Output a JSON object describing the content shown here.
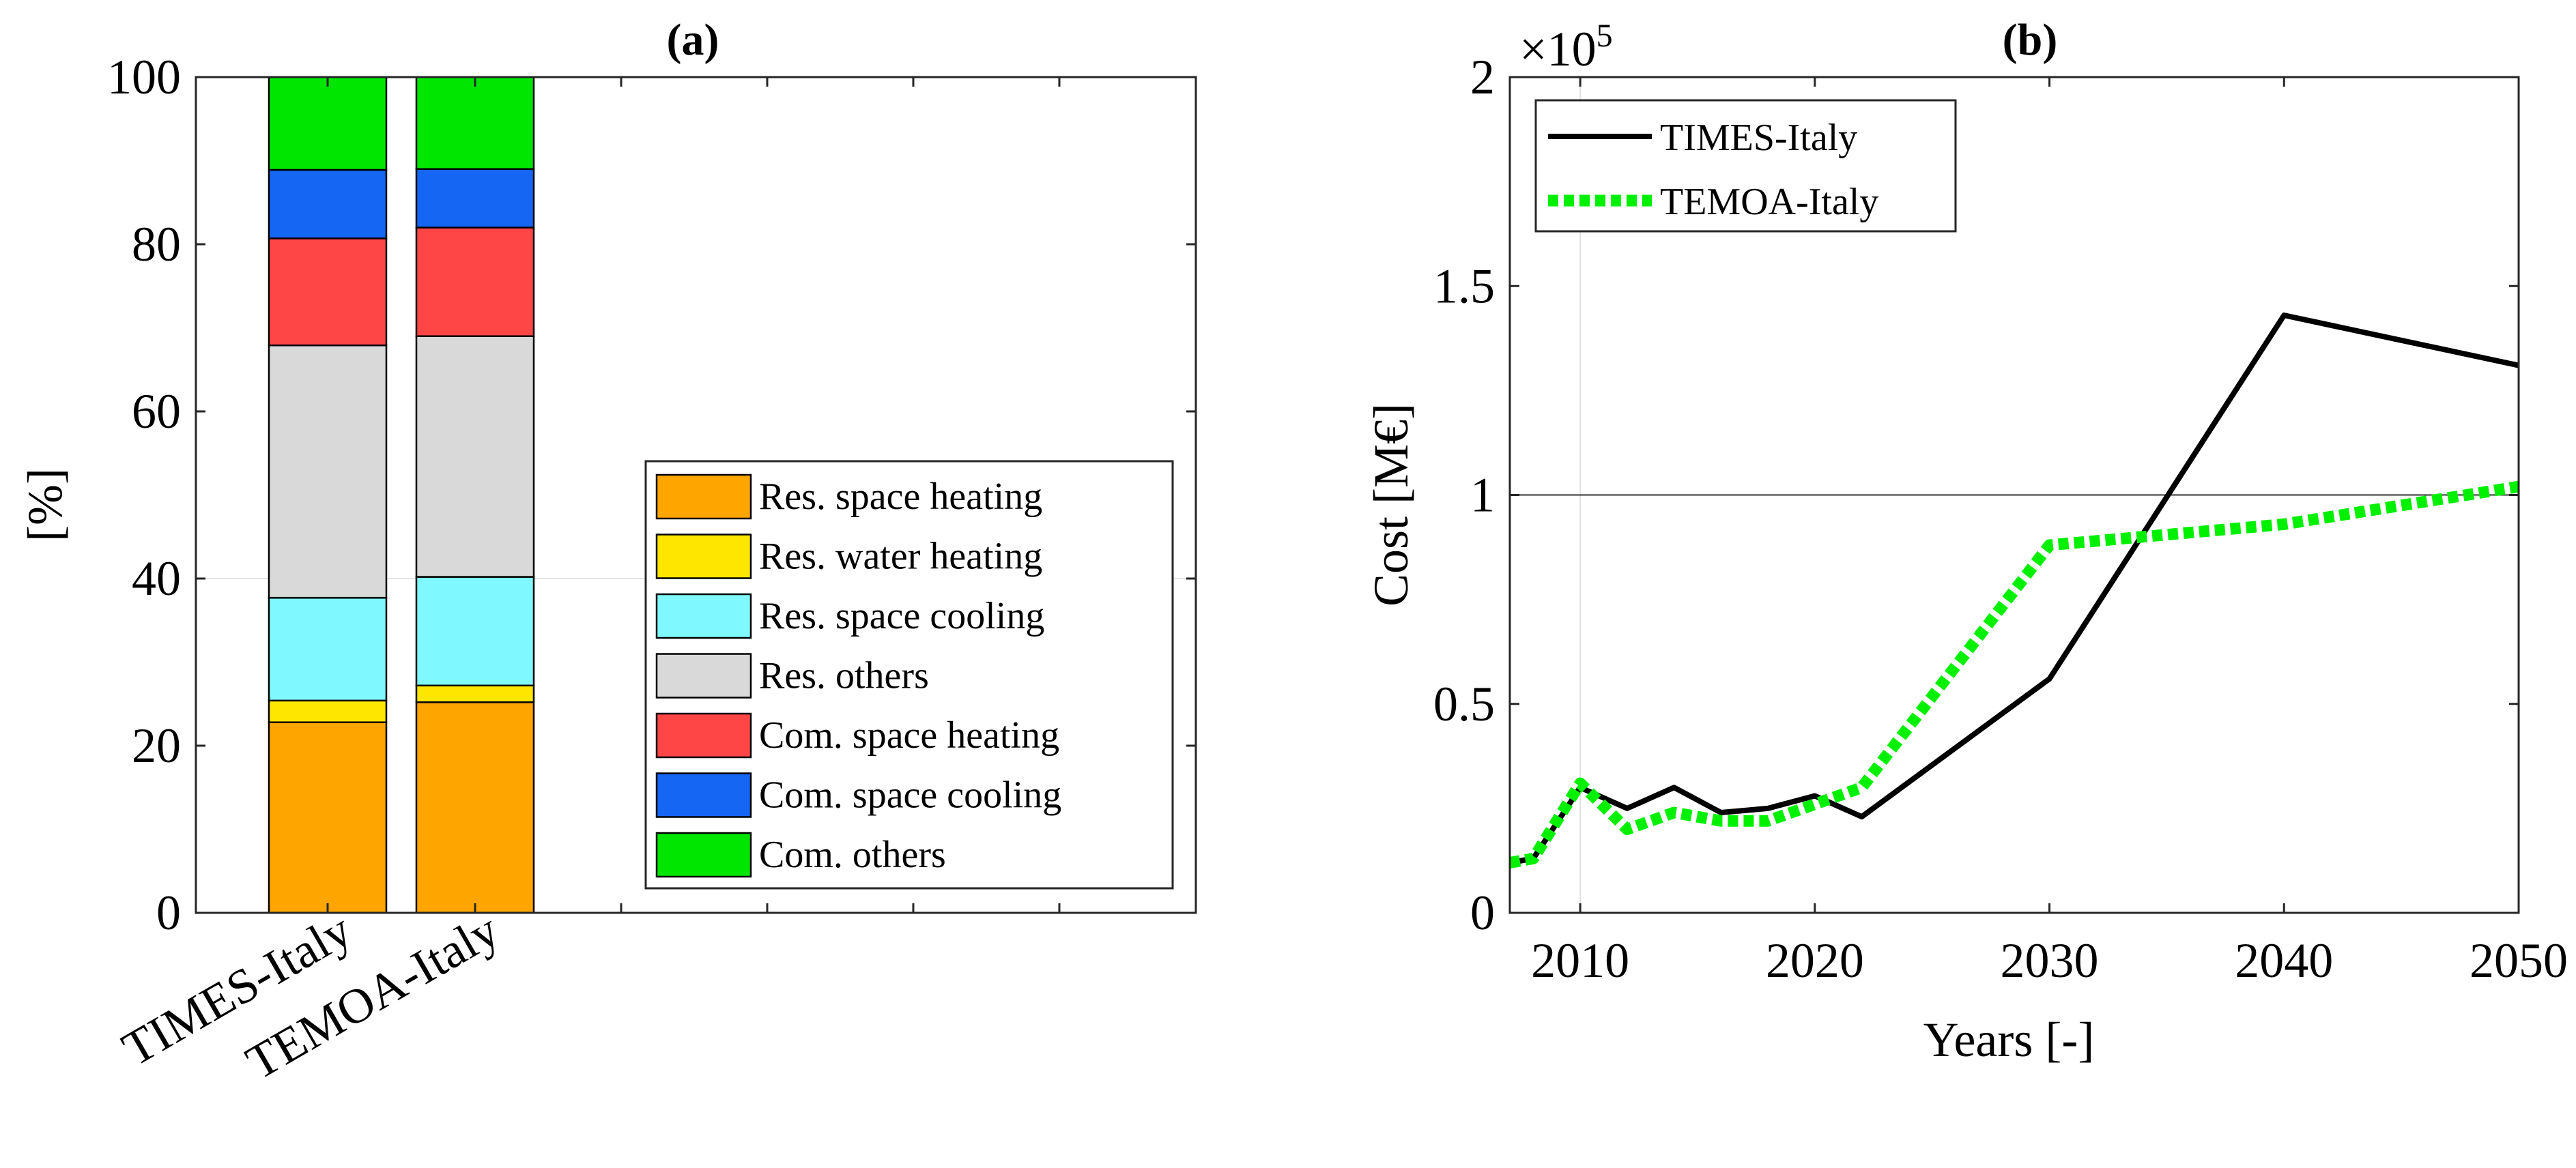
{
  "chart_data": [
    {
      "id": "a",
      "type": "bar",
      "stacked": true,
      "title": "(a)",
      "xlabel": "",
      "ylabel": "[%]",
      "ylim": [
        0,
        100
      ],
      "yticks": [
        0,
        20,
        40,
        60,
        80,
        100
      ],
      "grid": false,
      "legend_position": "bottom-right",
      "categories": [
        "TIMES-Italy",
        "TEMOA-Italy"
      ],
      "series": [
        {
          "name": "Res. space heating",
          "color": "#FFA500",
          "values": [
            22.8,
            25.2
          ]
        },
        {
          "name": "Res. water heating",
          "color": "#FFE600",
          "values": [
            2.6,
            2.0
          ]
        },
        {
          "name": "Res. space cooling",
          "color": "#80F8FF",
          "values": [
            12.3,
            13.0
          ]
        },
        {
          "name": "Res. others",
          "color": "#D9D9D9",
          "values": [
            30.2,
            28.8
          ]
        },
        {
          "name": "Com. space heating",
          "color": "#FF4646",
          "values": [
            12.8,
            13.0
          ]
        },
        {
          "name": "Com. space cooling",
          "color": "#1666F4",
          "values": [
            8.2,
            7.0
          ]
        },
        {
          "name": "Com. others",
          "color": "#00E600",
          "values": [
            11.1,
            11.0
          ]
        }
      ]
    },
    {
      "id": "b",
      "type": "line",
      "title": "(b)",
      "xlabel": "Years [-]",
      "ylabel": "Cost [M€]",
      "exponent_label": "×10",
      "exponent_power": "5",
      "xlim": [
        2007,
        2050
      ],
      "ylim": [
        0,
        2
      ],
      "xticks": [
        2010,
        2020,
        2030,
        2040,
        2050
      ],
      "yticks": [
        0,
        0.5,
        1,
        1.5,
        2
      ],
      "ytick_labels": [
        "0",
        "0.5",
        "1",
        "1.5",
        "2"
      ],
      "grid": false,
      "legend_position": "top-left",
      "series": [
        {
          "name": "TIMES-Italy",
          "color": "#000000",
          "style": "solid",
          "x": [
            2007,
            2008,
            2010,
            2012,
            2014,
            2016,
            2018,
            2020,
            2022,
            2030,
            2040,
            2050
          ],
          "y": [
            0.12,
            0.13,
            0.3,
            0.25,
            0.3,
            0.24,
            0.25,
            0.28,
            0.23,
            0.56,
            1.43,
            1.31
          ]
        },
        {
          "name": "TEMOA-Italy",
          "color": "#00F000",
          "style": "dotted",
          "x": [
            2007,
            2008,
            2010,
            2012,
            2014,
            2016,
            2018,
            2020,
            2022,
            2030,
            2040,
            2050
          ],
          "y": [
            0.12,
            0.13,
            0.31,
            0.2,
            0.24,
            0.22,
            0.22,
            0.26,
            0.3,
            0.88,
            0.93,
            1.02
          ]
        }
      ]
    }
  ]
}
